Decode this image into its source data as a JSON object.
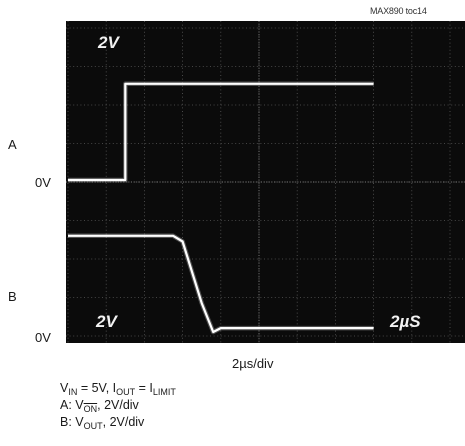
{
  "doc_id": "MAX890 toc14",
  "channel_labels": {
    "a": "A",
    "b": "B"
  },
  "zero_labels": {
    "a": "0V",
    "b": "0V"
  },
  "scope_text": {
    "scale_a": "2V",
    "scale_b": "2V",
    "scale_time": "2µS"
  },
  "x_axis_label": "2µs/div",
  "conditions": {
    "line1_vin": "V",
    "line1_vin_sub": "IN",
    "line1_vin_rest": " = 5V,  I",
    "line1_iout_sub": "OUT",
    "line1_eq": " = I",
    "line1_ilimit_sub": "LIMIT",
    "line2_prefix": "A: V",
    "line2_sub": "ON",
    "line2_rest": ", 2V/div",
    "line3_prefix": "B: V",
    "line3_sub": "OUT",
    "line3_rest": ", 2V/div"
  },
  "chart_data": {
    "type": "line",
    "time_per_div_us": 2,
    "x_divisions": 8,
    "y_divisions": 8,
    "volts_per_div": 2,
    "grid": true,
    "series": [
      {
        "x": [
          0,
          3,
          3,
          16
        ],
        "y": [
          0,
          0,
          5,
          5
        ]
      },
      {
        "x": [
          0,
          5.5,
          6.0,
          7.0,
          7.6,
          8.0,
          16
        ],
        "y": [
          5,
          5,
          4.7,
          1.5,
          0,
          0.2,
          0.2
        ]
      }
    ]
  }
}
